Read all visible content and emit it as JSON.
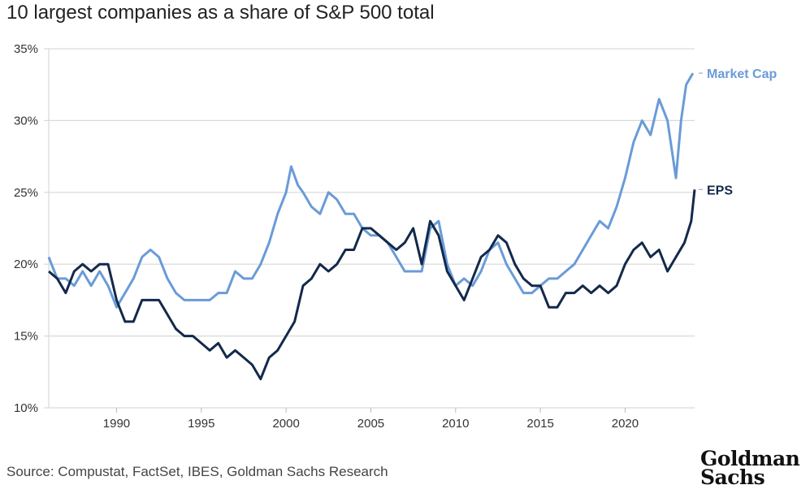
{
  "chart_data": {
    "type": "line",
    "title": "10 largest companies as a share of S&P 500 total",
    "xlabel": "",
    "ylabel": "",
    "xlim": [
      1986.0,
      2024.1
    ],
    "ylim": [
      10,
      35
    ],
    "grid": true,
    "x_ticks": [
      1990,
      1995,
      2000,
      2005,
      2010,
      2015,
      2020
    ],
    "x_tick_labels": [
      "1990",
      "1995",
      "2000",
      "2005",
      "2010",
      "2015",
      "2020"
    ],
    "y_ticks": [
      10,
      15,
      20,
      25,
      30,
      35
    ],
    "y_tick_labels": [
      "10%",
      "15%",
      "20%",
      "25%",
      "30%",
      "35%"
    ],
    "legend": "end-of-line labels, right",
    "series": [
      {
        "name": "Market Cap",
        "color": "#6a9bd8",
        "x": [
          1986.0,
          1986.5,
          1987,
          1987.5,
          1988,
          1988.5,
          1989,
          1989.5,
          1990,
          1990.5,
          1991,
          1991.5,
          1992,
          1992.5,
          1993,
          1993.5,
          1994,
          1994.5,
          1995,
          1995.5,
          1996,
          1996.5,
          1997,
          1997.5,
          1998,
          1998.5,
          1999,
          1999.5,
          2000,
          2000.3,
          2000.7,
          2001,
          2001.5,
          2002,
          2002.5,
          2003,
          2003.5,
          2004,
          2004.5,
          2005,
          2005.5,
          2006,
          2006.5,
          2007,
          2007.5,
          2008,
          2008.5,
          2009,
          2009.5,
          2010,
          2010.5,
          2011,
          2011.5,
          2012,
          2012.5,
          2013,
          2013.5,
          2014,
          2014.5,
          2015,
          2015.5,
          2016,
          2016.5,
          2017,
          2017.5,
          2018,
          2018.5,
          2019,
          2019.5,
          2020,
          2020.5,
          2021,
          2021.5,
          2022,
          2022.5,
          2023,
          2023.3,
          2023.6,
          2024
        ],
        "values": [
          20.5,
          19,
          19,
          18.5,
          19.5,
          18.5,
          19.5,
          18.5,
          17,
          18,
          19,
          20.5,
          21,
          20.5,
          19,
          18,
          17.5,
          17.5,
          17.5,
          17.5,
          18,
          18,
          19.5,
          19,
          19,
          20,
          21.5,
          23.5,
          25,
          26.8,
          25.5,
          25,
          24,
          23.5,
          25,
          24.5,
          23.5,
          23.5,
          22.5,
          22,
          22,
          21.5,
          20.5,
          19.5,
          19.5,
          19.5,
          22.5,
          23,
          20,
          18.5,
          19,
          18.5,
          19.5,
          21,
          21.5,
          20,
          19,
          18,
          18,
          18.5,
          19,
          19,
          19.5,
          20,
          21,
          22,
          23,
          22.5,
          24,
          26,
          28.5,
          30,
          29,
          31.5,
          30,
          26,
          30,
          32.5,
          33.3
        ]
      },
      {
        "name": "EPS",
        "color": "#13294b",
        "x": [
          1986,
          1986.5,
          1987,
          1987.5,
          1988,
          1988.5,
          1989,
          1989.5,
          1990,
          1990.5,
          1991,
          1991.5,
          1992,
          1992.5,
          1993,
          1993.5,
          1994,
          1994.5,
          1995,
          1995.5,
          1996,
          1996.5,
          1997,
          1997.5,
          1998,
          1998.5,
          1999,
          1999.5,
          2000,
          2000.5,
          2001,
          2001.5,
          2002,
          2002.5,
          2003,
          2003.5,
          2004,
          2004.5,
          2005,
          2005.5,
          2006,
          2006.5,
          2007,
          2007.5,
          2008,
          2008.5,
          2009,
          2009.5,
          2010,
          2010.5,
          2011,
          2011.5,
          2012,
          2012.5,
          2013,
          2013.5,
          2014,
          2014.5,
          2015,
          2015.5,
          2016,
          2016.5,
          2017,
          2017.5,
          2018,
          2018.5,
          2019,
          2019.5,
          2020,
          2020.5,
          2021,
          2021.5,
          2022,
          2022.5,
          2023,
          2023.5,
          2023.9,
          2024.1
        ],
        "values": [
          19.5,
          19,
          18,
          19.5,
          20,
          19.5,
          20,
          20,
          17.5,
          16,
          16,
          17.5,
          17.5,
          17.5,
          16.5,
          15.5,
          15,
          15,
          14.5,
          14,
          14.5,
          13.5,
          14,
          13.5,
          13,
          12,
          13.5,
          14,
          15,
          16,
          18.5,
          19,
          20,
          19.5,
          20,
          21,
          21,
          22.5,
          22.5,
          22,
          21.5,
          21,
          21.5,
          22.5,
          20,
          23,
          22,
          19.5,
          18.5,
          17.5,
          19,
          20.5,
          21,
          22,
          21.5,
          20,
          19,
          18.5,
          18.5,
          17,
          17,
          18,
          18,
          18.5,
          18,
          18.5,
          18,
          18.5,
          20,
          21,
          21.5,
          20.5,
          21,
          19.5,
          20.5,
          21.5,
          23,
          25.2
        ]
      }
    ],
    "source": "Source: Compustat, FactSet, IBES, Goldman Sachs Research",
    "logo_text": "Goldman Sachs"
  }
}
